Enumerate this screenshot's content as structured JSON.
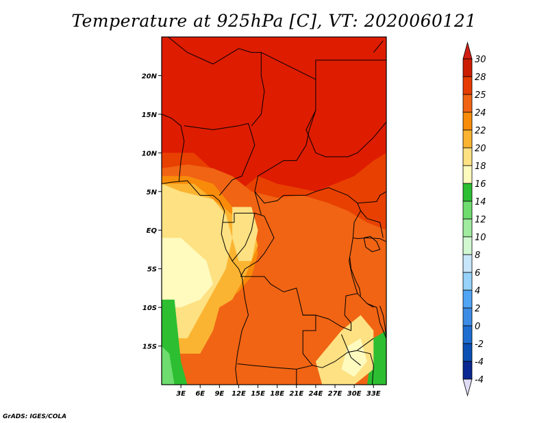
{
  "title": "Temperature at 925hPa [C], VT: 2020060121",
  "credit": "GrADS: IGES/COLA",
  "lat_ticks": [
    {
      "label": "20N",
      "value": 20
    },
    {
      "label": "15N",
      "value": 15
    },
    {
      "label": "10N",
      "value": 10
    },
    {
      "label": "5N",
      "value": 5
    },
    {
      "label": "EQ",
      "value": 0
    },
    {
      "label": "5S",
      "value": -5
    },
    {
      "label": "10S",
      "value": -10
    },
    {
      "label": "15S",
      "value": -15
    }
  ],
  "lon_ticks": [
    {
      "label": "3E",
      "value": 3
    },
    {
      "label": "6E",
      "value": 6
    },
    {
      "label": "9E",
      "value": 9
    },
    {
      "label": "12E",
      "value": 12
    },
    {
      "label": "15E",
      "value": 15
    },
    {
      "label": "18E",
      "value": 18
    },
    {
      "label": "21E",
      "value": 21
    },
    {
      "label": "24E",
      "value": 24
    },
    {
      "label": "27E",
      "value": 27
    },
    {
      "label": "30E",
      "value": 30
    },
    {
      "label": "33E",
      "value": 33
    }
  ],
  "extent": {
    "lon_min": 0,
    "lon_max": 35,
    "lat_min": -20,
    "lat_max": 25
  },
  "colorbar": {
    "levels": [
      {
        "label": "30",
        "color": "#cc1e00"
      },
      {
        "label": "28",
        "color": "#e63c00"
      },
      {
        "label": "25",
        "color": "#f06414"
      },
      {
        "label": "24",
        "color": "#f88c0a"
      },
      {
        "label": "22",
        "color": "#fbb432"
      },
      {
        "label": "20",
        "color": "#fde182"
      },
      {
        "label": "18",
        "color": "#fffabe"
      },
      {
        "label": "16",
        "color": "#2dbe32"
      },
      {
        "label": "14",
        "color": "#6edc6e"
      },
      {
        "label": "12",
        "color": "#a0eba0"
      },
      {
        "label": "10",
        "color": "#d2f8d2"
      },
      {
        "label": "8",
        "color": "#c8e6fa"
      },
      {
        "label": "6",
        "color": "#96d2fa"
      },
      {
        "label": "4",
        "color": "#50a5f5"
      },
      {
        "label": "2",
        "color": "#3c8ce6"
      },
      {
        "label": "0",
        "color": "#1e6ed2"
      },
      {
        "label": "-2",
        "color": "#0a50b4"
      },
      {
        "label": "-4",
        "color": "#0a2891"
      }
    ],
    "top_color": "#d21e14",
    "bottom_color": "#e1dcf5",
    "bottom_extra_label": "-4"
  },
  "field_colors": {
    "darkred": "#de1c00",
    "red": "#e84000",
    "orange": "#f06414",
    "amber": "#f88c0a",
    "lightorange": "#fbb432",
    "yellow": "#fde182",
    "cream": "#fffabe",
    "green": "#2dbe32",
    "lightgreen": "#6edc6e"
  }
}
